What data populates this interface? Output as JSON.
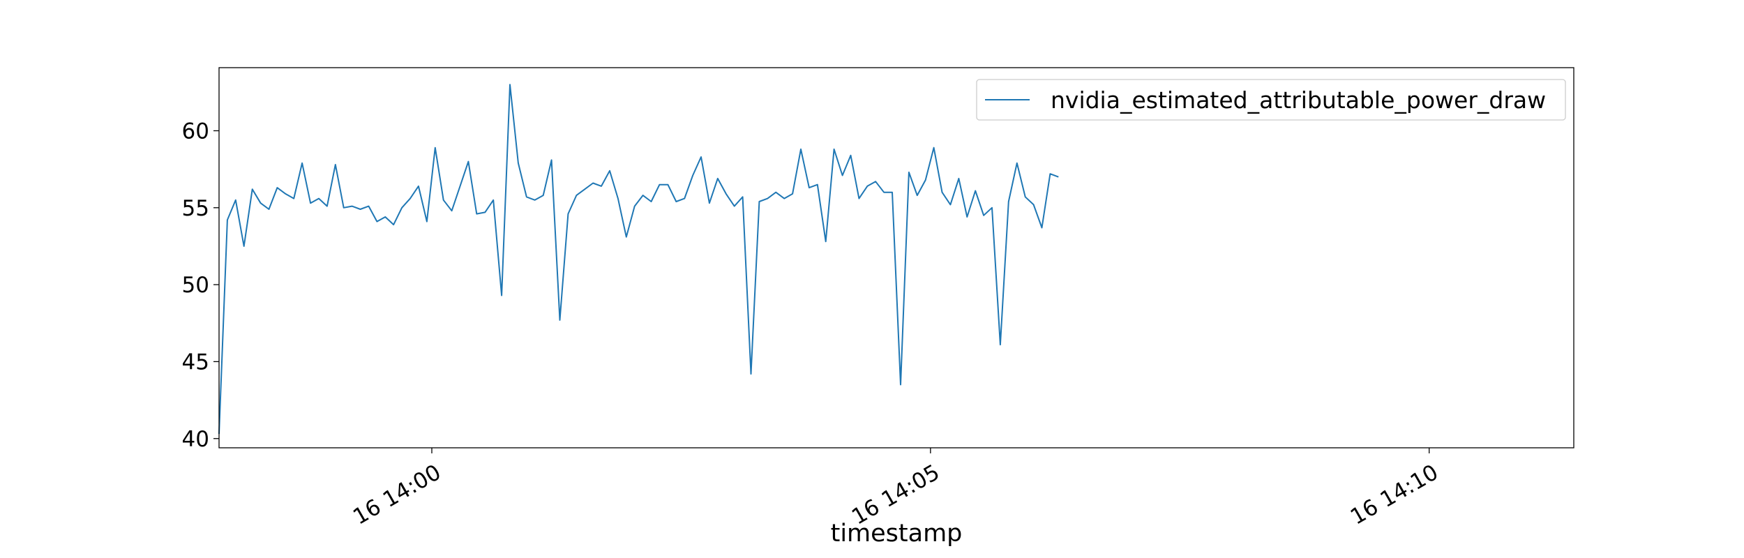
{
  "chart_data": {
    "type": "line",
    "title": "",
    "xlabel": "timestamp",
    "ylabel": "",
    "x_start": "2024-01-16 13:57:52",
    "x_interval_seconds": 5,
    "xlim": [
      "2024-01-16 13:57:52",
      "2024-01-16 14:11:27"
    ],
    "ylim": [
      39.4,
      64.1
    ],
    "x_ticks": [
      "2024-01-16 14:00:00",
      "2024-01-16 14:05:00",
      "2024-01-16 14:10:00"
    ],
    "x_tick_labels": [
      "16 14:00",
      "16 14:05",
      "16 14:10"
    ],
    "y_ticks": [
      40,
      45,
      50,
      55,
      60
    ],
    "y_tick_labels": [
      "40",
      "45",
      "50",
      "55",
      "60"
    ],
    "grid": false,
    "legend_position": "upper right",
    "series": [
      {
        "name": "nvidia_estimated_attributable_power_draw",
        "color": "#1f77b4",
        "values": [
          40.3,
          54.2,
          55.5,
          52.5,
          56.2,
          55.3,
          54.9,
          56.3,
          55.9,
          55.6,
          57.9,
          55.3,
          55.6,
          55.1,
          57.8,
          55.0,
          55.1,
          54.9,
          55.1,
          54.1,
          54.4,
          53.9,
          55.0,
          55.6,
          56.4,
          54.1,
          58.9,
          55.5,
          54.8,
          56.4,
          58.0,
          54.6,
          54.7,
          55.5,
          49.3,
          63.0,
          57.9,
          55.7,
          55.5,
          55.8,
          58.1,
          47.7,
          54.6,
          55.8,
          56.2,
          56.6,
          56.4,
          57.4,
          55.6,
          53.1,
          55.1,
          55.8,
          55.4,
          56.5,
          56.5,
          55.4,
          55.6,
          57.1,
          58.3,
          55.3,
          56.9,
          55.9,
          55.1,
          55.7,
          44.2,
          55.4,
          55.6,
          56.0,
          55.6,
          55.9,
          58.8,
          56.3,
          56.5,
          52.8,
          58.8,
          57.1,
          58.4,
          55.6,
          56.4,
          56.7,
          56.0,
          56.0,
          43.5,
          57.3,
          55.8,
          56.8,
          58.9,
          56.0,
          55.2,
          56.9,
          54.4,
          56.1,
          54.5,
          55.0,
          46.1,
          55.4,
          57.9,
          55.7,
          55.2,
          53.7,
          57.2,
          57.0
        ]
      }
    ]
  }
}
